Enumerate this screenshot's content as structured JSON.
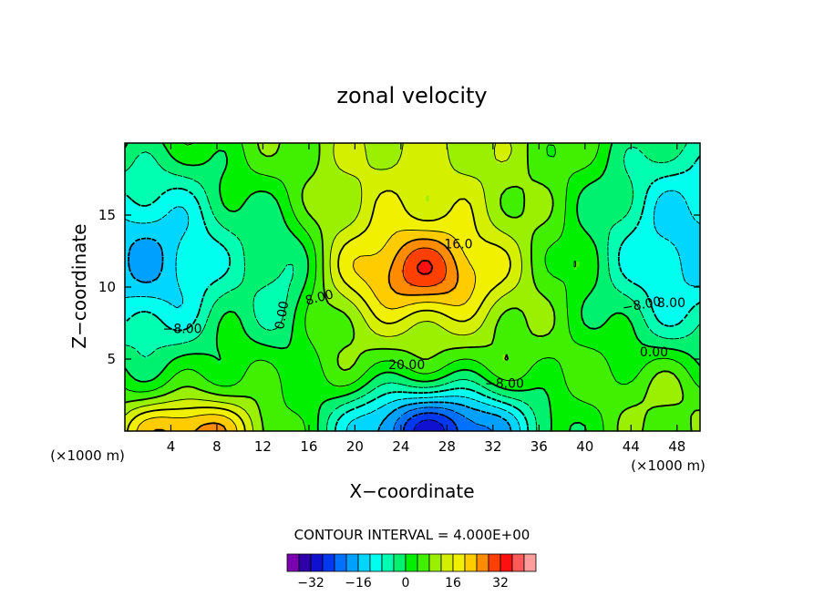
{
  "chart_data": {
    "type": "heatmap",
    "title": "zonal velocity",
    "xlabel": "X−coordinate",
    "ylabel": "Z−coordinate",
    "x_unit_left": "(×1000 m)",
    "x_unit_right": "(×1000 m)",
    "xlim": [
      0,
      50
    ],
    "ylim": [
      0,
      20
    ],
    "x_ticks": [
      4,
      8,
      12,
      16,
      20,
      24,
      28,
      32,
      36,
      40,
      44,
      48
    ],
    "y_ticks": [
      5,
      10,
      15
    ],
    "contour_interval_text": "CONTOUR INTERVAL = 4.000E+00",
    "contour_levels": [
      -36,
      -32,
      -28,
      -24,
      -20,
      -16,
      -12,
      -8,
      -4,
      0,
      4,
      8,
      12,
      16,
      20,
      24,
      28,
      32,
      36
    ],
    "colorbar_tick_labels": [
      "−32",
      "−16",
      "0",
      "16",
      "32"
    ],
    "colorbar_tick_values": [
      -32,
      -16,
      0,
      16,
      32
    ],
    "colorbar_colors": [
      "#7a00b0",
      "#2d00a8",
      "#1010d0",
      "#0038f0",
      "#0070ff",
      "#00a0ff",
      "#00d6ff",
      "#00ffee",
      "#00ffb0",
      "#00f070",
      "#00f000",
      "#40f000",
      "#9af000",
      "#d4f000",
      "#f0f000",
      "#ffcc00",
      "#ff8c00",
      "#ff4000",
      "#ff1010",
      "#ff5a5a",
      "#ff9d9d"
    ],
    "contour_labels": [
      "16.0",
      "8.00",
      "0.00",
      "−8.00",
      "−8.00",
      "8.00",
      "0.00",
      "20.00",
      "−8.00"
    ],
    "field_features": [
      {
        "label": "upper-centre jet maximum",
        "x": 26,
        "z": 11,
        "value": 24
      },
      {
        "label": "lower-centre minimum",
        "x": 27,
        "z": 0.5,
        "value": -28
      },
      {
        "label": "upper-left minimum",
        "x": 2,
        "z": 11,
        "value": -16
      },
      {
        "label": "lower-left maximum",
        "x": 5,
        "z": 0.7,
        "value": 22
      },
      {
        "label": "upper-right minimum",
        "x": 49,
        "z": 17,
        "value": -16
      }
    ]
  }
}
